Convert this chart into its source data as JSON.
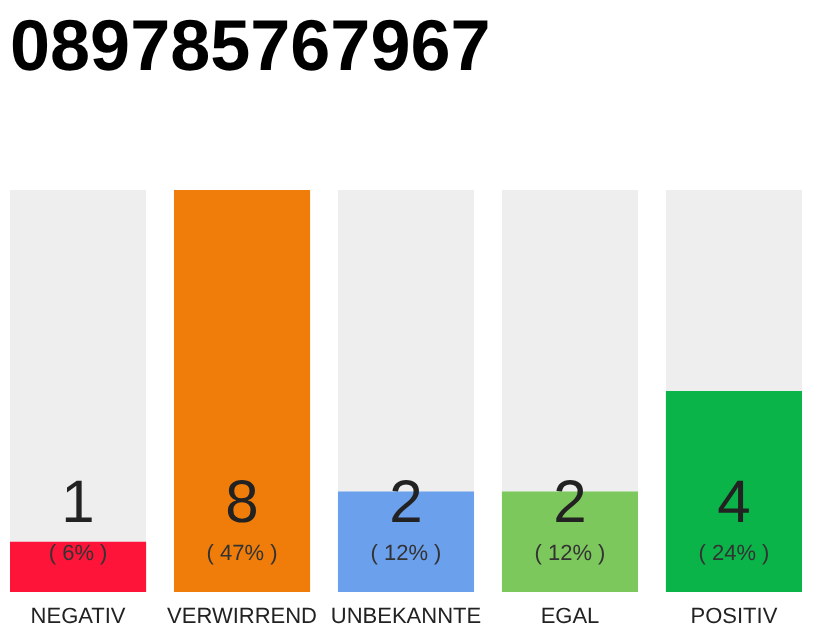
{
  "chart_data": {
    "type": "bar",
    "title": "089785767967",
    "categories": [
      "NEGATIV",
      "VERWIRREND",
      "UNBEKANNTE",
      "EGAL",
      "POSITIV"
    ],
    "values": [
      1,
      8,
      2,
      2,
      4
    ],
    "colors": [
      "#ff1439",
      "#f07d0a",
      "#6aa0ec",
      "#7cc85c",
      "#0bb449"
    ],
    "ylim": [
      0,
      8
    ],
    "tick_labels": "x",
    "data_labels": true,
    "annotations": [
      "( 6% )",
      "( 47% )",
      "( 12% )",
      "( 12% )",
      "( 24% )"
    ]
  }
}
